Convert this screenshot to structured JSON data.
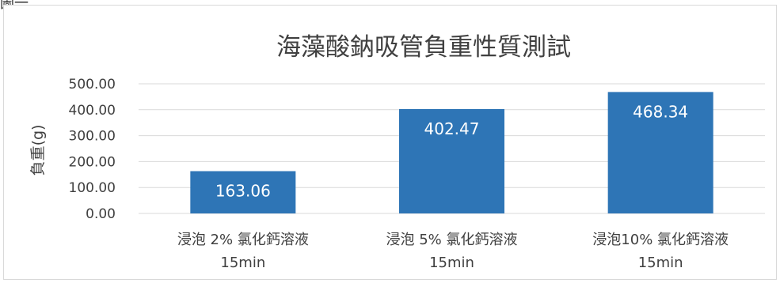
{
  "figure_label": "圖一",
  "colors": {
    "bar": "#2e75b6",
    "grid": "#d9d9d9",
    "text": "#404040",
    "data_label": "#ffffff"
  },
  "chart_data": {
    "type": "bar",
    "title": "海藻酸鈉吸管負重性質測試",
    "xlabel": "",
    "ylabel": "負重(g)",
    "ylim": [
      0,
      500
    ],
    "yticks": [
      "0.00",
      "100.00",
      "200.00",
      "300.00",
      "400.00",
      "500.00"
    ],
    "categories": [
      {
        "line1": "浸泡 2% 氯化鈣溶液",
        "line2": "15min"
      },
      {
        "line1": "浸泡 5% 氯化鈣溶液",
        "line2": "15min"
      },
      {
        "line1": "浸泡10% 氯化鈣溶液",
        "line2": "15min"
      }
    ],
    "values": [
      163.06,
      402.47,
      468.34
    ],
    "data_labels": [
      "163.06",
      "402.47",
      "468.34"
    ],
    "grid": true,
    "legend": "none"
  }
}
